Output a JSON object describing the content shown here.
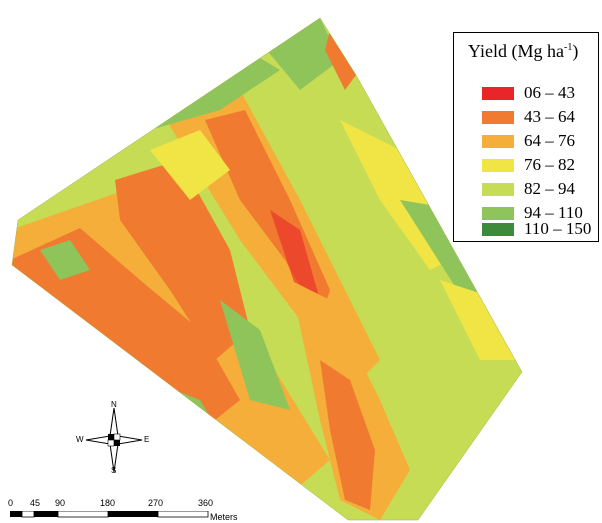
{
  "legend": {
    "title": "Yield (Mg ha",
    "title_sup": "-1",
    "title_close": ")",
    "items": [
      {
        "label": "06 – 43",
        "color": "#e8262a"
      },
      {
        "label": "43 – 64",
        "color": "#f07a30"
      },
      {
        "label": "64 – 76",
        "color": "#f5ae3a"
      },
      {
        "label": "76 – 82",
        "color": "#f1e445"
      },
      {
        "label": "82 – 94",
        "color": "#c6dc55"
      },
      {
        "label": "94 – 110",
        "color": "#8fc45a"
      },
      {
        "label": "110 – 150",
        "color": "#3d8a3d"
      }
    ]
  },
  "compass": {
    "north": "N",
    "south": "S",
    "east": "E",
    "west": "W"
  },
  "scale_bar": {
    "ticks": [
      "0",
      "45",
      "90",
      "180",
      "270",
      "360"
    ],
    "unit": "Meters"
  }
}
